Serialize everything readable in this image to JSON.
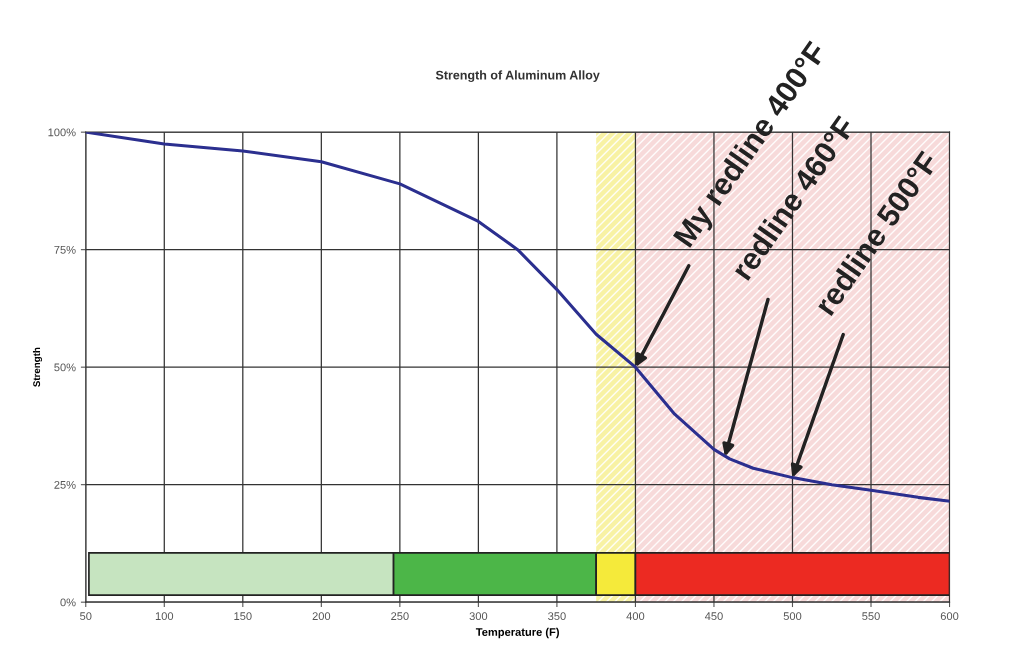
{
  "chart_data": {
    "type": "line",
    "title": "Strength of Aluminum Alloy",
    "xlabel": "Temperature (F)",
    "ylabel": "Strength",
    "series": [
      {
        "color": "#2b2f8f",
        "x": [
          50,
          100,
          150,
          200,
          250,
          300,
          325,
          350,
          375,
          400,
          425,
          450,
          460,
          475,
          500,
          525,
          550,
          580,
          600
        ],
        "values": [
          100,
          97.5,
          96,
          93.7,
          89,
          81,
          75,
          66.5,
          57,
          50,
          40,
          32.5,
          30.5,
          28.5,
          26.5,
          25,
          23.8,
          22.3,
          21.5
        ]
      },
      {
        "type": "histogram",
        "bins": [
          52,
          246,
          375,
          400,
          600
        ],
        "values": [
          9,
          9,
          9,
          9
        ],
        "base": [
          1.5,
          1.5,
          1.5,
          1.5
        ],
        "colors": [
          "#c6e4c0",
          "#4cb648",
          "#f5ea3a",
          "#ec2a22"
        ]
      }
    ],
    "bands": [
      {
        "axis": "x",
        "from": 375,
        "to": 400,
        "color": "#f7f19a"
      },
      {
        "axis": "x",
        "from": 400,
        "to": 600,
        "color": "#f6d6d6"
      }
    ],
    "annotations": [
      {
        "text": "My redline 400°F",
        "x": 400,
        "y": 50
      },
      {
        "text": "redline 460°F",
        "x": 457,
        "y": 31
      },
      {
        "text": "redline 500°F",
        "x": 500,
        "y": 26.5
      }
    ],
    "xlim": [
      50,
      600
    ],
    "ylim": [
      0,
      100
    ],
    "xticks": [
      50,
      100,
      150,
      200,
      250,
      300,
      350,
      400,
      450,
      500,
      550,
      600
    ],
    "yticks": [
      {
        "value": 0,
        "label": "0%"
      },
      {
        "value": 25,
        "label": "25%"
      },
      {
        "value": 50,
        "label": "50%"
      },
      {
        "value": 75,
        "label": "75%"
      },
      {
        "value": 100,
        "label": "100%"
      }
    ],
    "grid": true,
    "line_style": "solid",
    "marker": "none"
  }
}
